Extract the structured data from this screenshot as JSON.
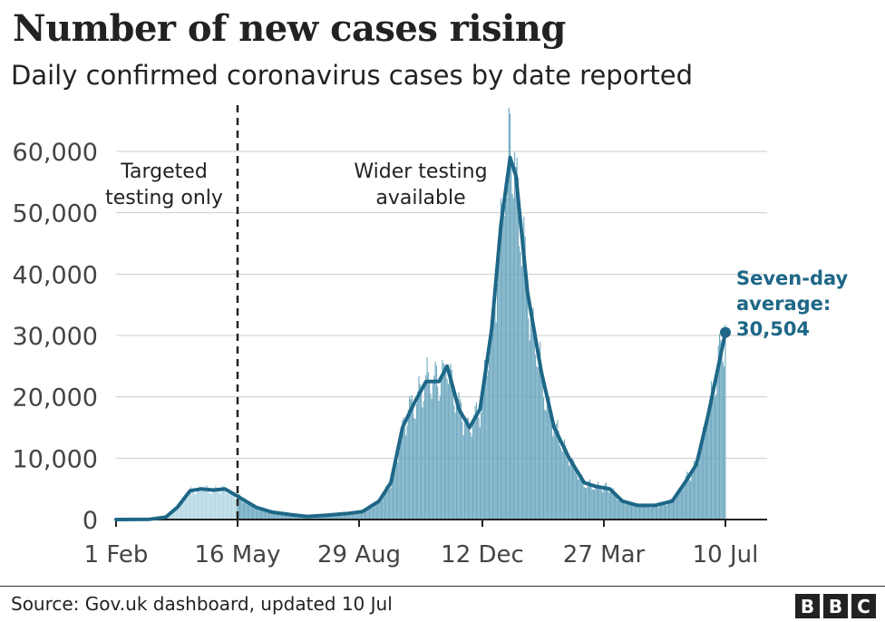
{
  "chart_data": {
    "type": "bar",
    "title": "Number of new cases rising",
    "subtitle": "Daily confirmed coronavirus cases by date reported",
    "ylim": [
      0,
      65000
    ],
    "yticks": [
      0,
      10000,
      20000,
      30000,
      40000,
      50000,
      60000
    ],
    "ytick_labels": [
      "0",
      "10,000",
      "20,000",
      "30,000",
      "40,000",
      "50,000",
      "60,000"
    ],
    "xtick_labels": [
      "1 Feb",
      "16 May",
      "29 Aug",
      "12 Dec",
      "27 Mar",
      "10 Jul"
    ],
    "x_range_dates": [
      "1 Feb",
      "10 Jul"
    ],
    "grid": true,
    "colors": {
      "targeted_bars": "#b3d6e3",
      "wider_bars": "#6ca7bf",
      "average_line": "#1e6787",
      "gridline": "#cccccc",
      "divider": "#222222"
    },
    "annotations": {
      "targeted": [
        "Targeted",
        "testing only"
      ],
      "wider": [
        "Wider testing",
        "available"
      ],
      "average": [
        "Seven-day",
        "average:",
        "30,504"
      ],
      "divider_at": "16 May"
    },
    "series": [
      {
        "name": "Seven-day average",
        "points": [
          [
            "1 Feb",
            0
          ],
          [
            "1 Mar",
            50
          ],
          [
            "15 Mar",
            400
          ],
          [
            "25 Mar",
            2000
          ],
          [
            "5 Apr",
            4700
          ],
          [
            "15 Apr",
            5000
          ],
          [
            "25 Apr",
            4800
          ],
          [
            "5 May",
            5000
          ],
          [
            "16 May",
            3800
          ],
          [
            "1 Jun",
            2000
          ],
          [
            "15 Jun",
            1200
          ],
          [
            "1 Jul",
            800
          ],
          [
            "15 Jul",
            500
          ],
          [
            "1 Aug",
            700
          ],
          [
            "20 Aug",
            1000
          ],
          [
            "1 Sep",
            1300
          ],
          [
            "15 Sep",
            3000
          ],
          [
            "25 Sep",
            6000
          ],
          [
            "5 Oct",
            15000
          ],
          [
            "15 Oct",
            19000
          ],
          [
            "25 Oct",
            22500
          ],
          [
            "5 Nov",
            22500
          ],
          [
            "12 Nov",
            25000
          ],
          [
            "22 Nov",
            18000
          ],
          [
            "1 Dec",
            15000
          ],
          [
            "10 Dec",
            18000
          ],
          [
            "20 Dec",
            31000
          ],
          [
            "28 Dec",
            48000
          ],
          [
            "5 Jan",
            59000
          ],
          [
            "10 Jan",
            56000
          ],
          [
            "20 Jan",
            37000
          ],
          [
            "1 Feb",
            24000
          ],
          [
            "12 Feb",
            15000
          ],
          [
            "25 Feb",
            10000
          ],
          [
            "10 Mar",
            6000
          ],
          [
            "20 Mar",
            5400
          ],
          [
            "1 Apr",
            5000
          ],
          [
            "12 Apr",
            3000
          ],
          [
            "25 Apr",
            2300
          ],
          [
            "10 May",
            2300
          ],
          [
            "25 May",
            3000
          ],
          [
            "5 Jun",
            6000
          ],
          [
            "15 Jun",
            9000
          ],
          [
            "25 Jun",
            17000
          ],
          [
            "10 Jul",
            30504
          ]
        ]
      }
    ],
    "source": "Source: Gov.uk dashboard, updated 10 Jul",
    "logo": [
      "B",
      "B",
      "C"
    ]
  }
}
